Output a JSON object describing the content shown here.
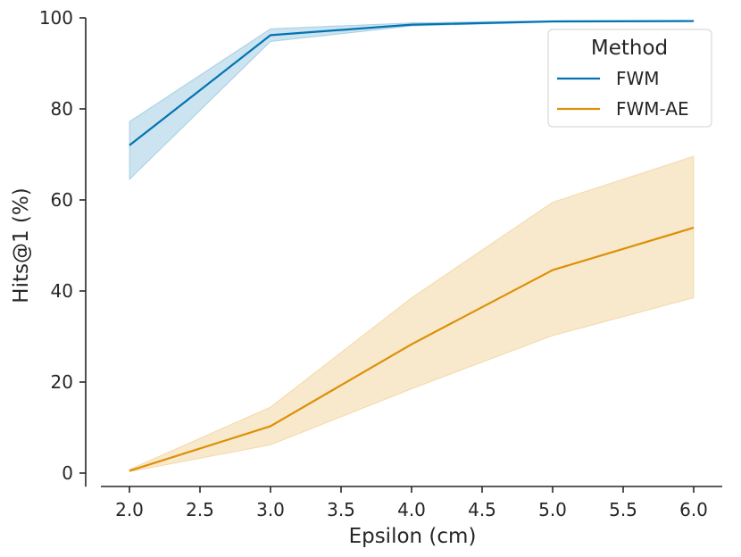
{
  "chart_data": {
    "type": "line",
    "title": "",
    "xlabel": "Epsilon (cm)",
    "ylabel": "Hits@1 (%)",
    "x": [
      2.0,
      3.0,
      4.0,
      5.0,
      6.0
    ],
    "xlim": [
      1.8,
      6.2
    ],
    "ylim": [
      -3,
      100
    ],
    "xticks": [
      2.0,
      2.5,
      3.0,
      3.5,
      4.0,
      4.5,
      5.0,
      5.5,
      6.0
    ],
    "xtick_labels": [
      "2.0",
      "2.5",
      "3.0",
      "3.5",
      "4.0",
      "4.5",
      "5.0",
      "5.5",
      "6.0"
    ],
    "yticks": [
      0,
      20,
      40,
      60,
      80,
      100
    ],
    "ytick_labels": [
      "0",
      "20",
      "40",
      "60",
      "80",
      "100"
    ],
    "grid": false,
    "legend": {
      "title": "Method",
      "location": "top-right"
    },
    "series": [
      {
        "name": "FWM",
        "color": "#0173b2",
        "values": [
          72.0,
          96.2,
          98.5,
          99.2,
          99.3
        ],
        "ci_low": [
          64.5,
          94.8,
          98.2,
          99.1,
          99.2
        ],
        "ci_high": [
          77.2,
          97.6,
          98.9,
          99.4,
          99.4
        ]
      },
      {
        "name": "FWM-AE",
        "color": "#de8f05",
        "values": [
          0.5,
          10.3,
          28.3,
          44.6,
          53.9
        ],
        "ci_low": [
          0.3,
          6.2,
          18.5,
          30.2,
          38.5
        ],
        "ci_high": [
          0.8,
          14.5,
          38.5,
          59.5,
          69.6
        ]
      }
    ]
  }
}
